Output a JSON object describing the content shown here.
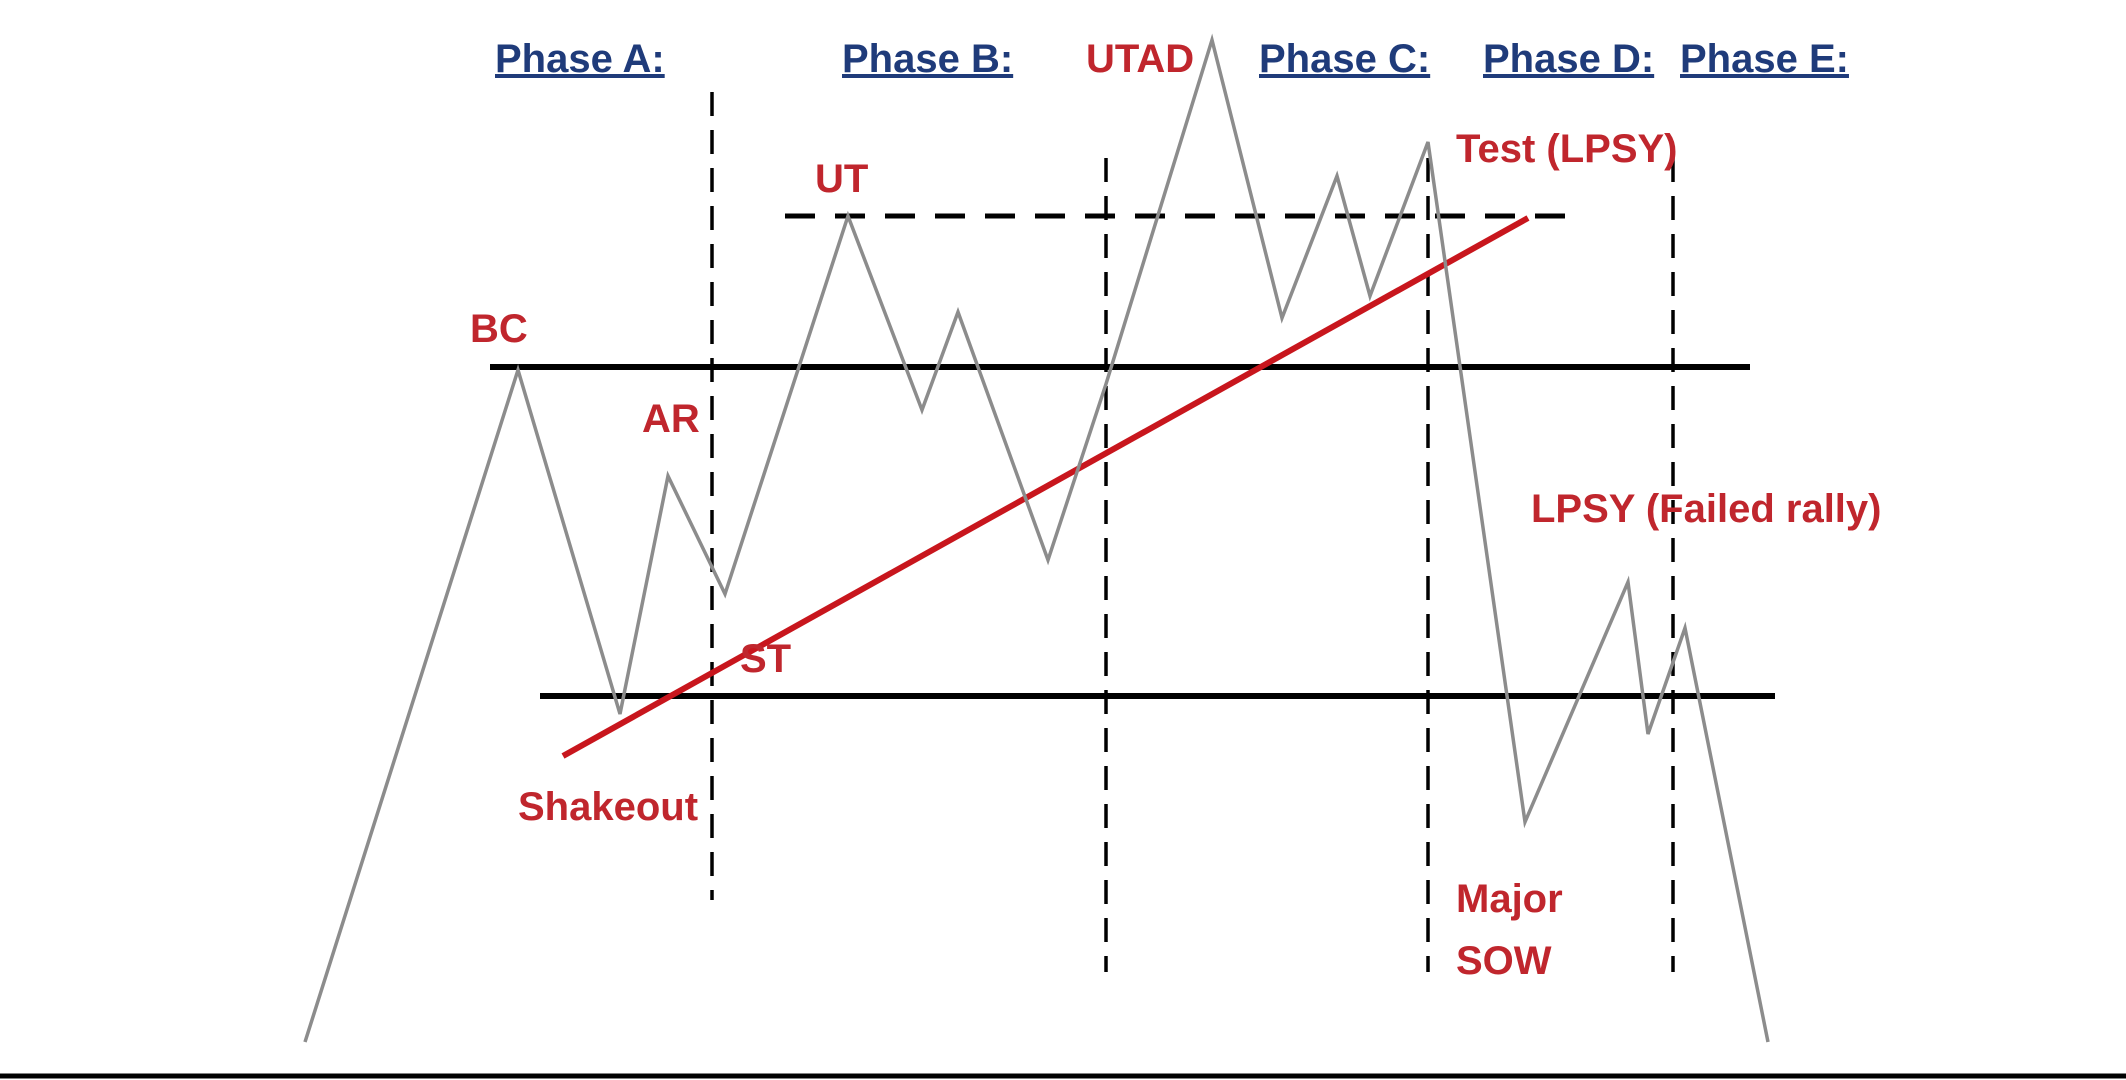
{
  "colors": {
    "phase_label": "#1f3b7a",
    "event_label": "#c0262d",
    "price_line": "#8c8c8c",
    "level_line": "#000000",
    "trend_line": "#c8161d",
    "background": "#ffffff"
  },
  "phases": [
    {
      "id": "a",
      "label": "Phase A:"
    },
    {
      "id": "b",
      "label": "Phase B:"
    },
    {
      "id": "c",
      "label": "Phase C:"
    },
    {
      "id": "d",
      "label": "Phase D:"
    },
    {
      "id": "e",
      "label": "Phase E:"
    }
  ],
  "events": {
    "utad": "UTAD",
    "test_lpsy": "Test (LPSY)",
    "ut": "UT",
    "bc": "BC",
    "ar": "AR",
    "lpsy_failed_rally": "LPSY (Failed rally)",
    "st": "ST",
    "shakeout": "Shakeout",
    "major_sow_line1": "Major",
    "major_sow_line2": "SOW"
  }
}
